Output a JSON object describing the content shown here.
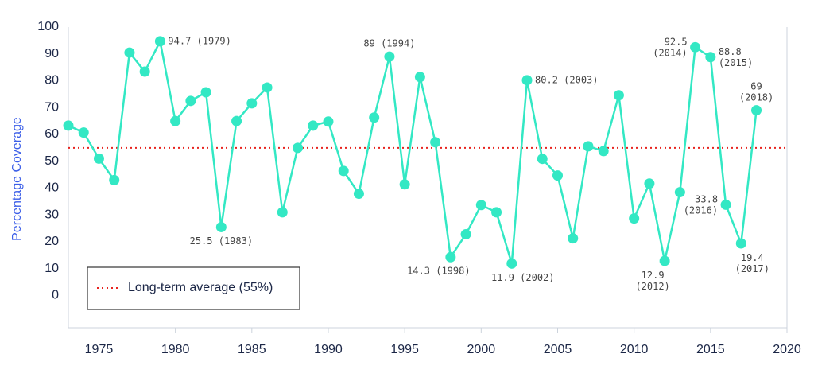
{
  "chart_data": {
    "type": "line",
    "y_label": "Percentage Coverage",
    "x": [
      1973,
      1974,
      1975,
      1976,
      1977,
      1978,
      1979,
      1980,
      1981,
      1982,
      1983,
      1984,
      1985,
      1986,
      1987,
      1988,
      1989,
      1990,
      1991,
      1992,
      1993,
      1994,
      1995,
      1996,
      1997,
      1998,
      1999,
      2000,
      2001,
      2002,
      2003,
      2004,
      2005,
      2006,
      2007,
      2008,
      2009,
      2010,
      2011,
      2012,
      2013,
      2014,
      2015,
      2016,
      2017,
      2018
    ],
    "values": [
      63.3,
      60.7,
      51,
      43,
      90.5,
      83.4,
      94.7,
      65,
      72.5,
      75.7,
      25.5,
      65,
      71.6,
      77.5,
      31,
      55,
      63.3,
      64.8,
      46.4,
      37.9,
      66.3,
      89,
      41.4,
      81.4,
      57.1,
      14.3,
      22.8,
      33.7,
      31,
      11.9,
      80.2,
      50.9,
      44.7,
      21.3,
      55.6,
      53.8,
      74.6,
      28.7,
      41.7,
      12.9,
      38.5,
      92.5,
      88.8,
      33.8,
      19.4,
      69
    ],
    "value_labels": [
      null,
      null,
      null,
      null,
      null,
      null,
      "94.7 (1979)",
      null,
      null,
      null,
      "25.5 (1983)",
      null,
      null,
      null,
      null,
      null,
      null,
      null,
      null,
      null,
      null,
      "89 (1994)",
      null,
      null,
      null,
      "14.3 (1998)",
      null,
      null,
      null,
      "11.9 (2002)",
      "80.2 (2003)",
      null,
      null,
      null,
      null,
      null,
      null,
      null,
      null,
      [
        "12.9",
        "(2012)"
      ],
      null,
      [
        "92.5",
        "(2014)"
      ],
      [
        "88.8",
        "(2015)"
      ],
      [
        "33.8",
        "(2016)"
      ],
      [
        "19.4",
        "(2017)"
      ],
      [
        "69",
        "(2018)"
      ]
    ],
    "color": "#33e8c4",
    "average": {
      "value": 55,
      "label": "Long-term average (55%)",
      "color": "#e8231e"
    },
    "xlim": [
      1973,
      2020
    ],
    "xticks": [
      1975,
      1980,
      1985,
      1990,
      1995,
      2000,
      2005,
      2010,
      2015,
      2020
    ],
    "ylim": [
      -12,
      100
    ],
    "yticks": [
      0,
      10,
      20,
      30,
      40,
      50,
      60,
      70,
      80,
      90,
      100
    ],
    "grid": false
  }
}
